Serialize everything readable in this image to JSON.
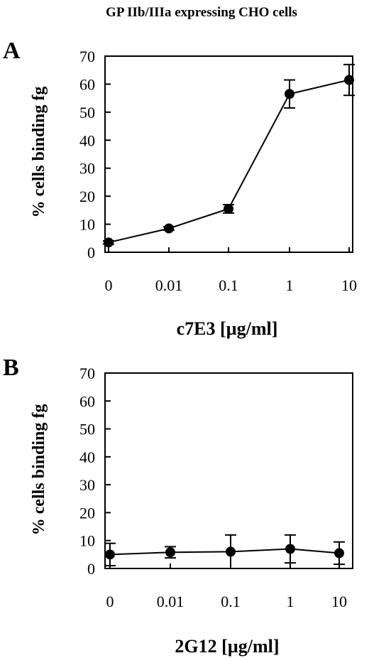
{
  "figure_title": "GP IIb/IIIa expressing CHO cells",
  "chart_data": [
    {
      "panel": "A",
      "type": "line",
      "xlabel": "c7E3 [µg/ml]",
      "ylabel": "% cells binding fg",
      "x_categories": [
        "0",
        "0.01",
        "0.1",
        "1",
        "10"
      ],
      "y_ticks": [
        "0",
        "10",
        "20",
        "30",
        "40",
        "50",
        "60",
        "70"
      ],
      "ylim": [
        0,
        70
      ],
      "values": [
        3.5,
        8.5,
        15.5,
        56.5,
        61.5
      ],
      "errors": [
        0.6,
        0.6,
        1.5,
        5,
        5.5
      ],
      "grid": false,
      "legend": "none"
    },
    {
      "panel": "B",
      "type": "line",
      "xlabel": "2G12 [µg/ml]",
      "ylabel": "% cells binding fg",
      "x_categories": [
        "0",
        "0.01",
        "0.1",
        "1",
        "10"
      ],
      "y_ticks": [
        "0",
        "10",
        "20",
        "30",
        "40",
        "50",
        "60",
        "70"
      ],
      "ylim": [
        0,
        70
      ],
      "values": [
        5,
        5.8,
        6,
        7,
        5.5
      ],
      "errors": [
        4,
        2,
        6,
        5,
        4
      ],
      "grid": false,
      "legend": "none"
    }
  ]
}
